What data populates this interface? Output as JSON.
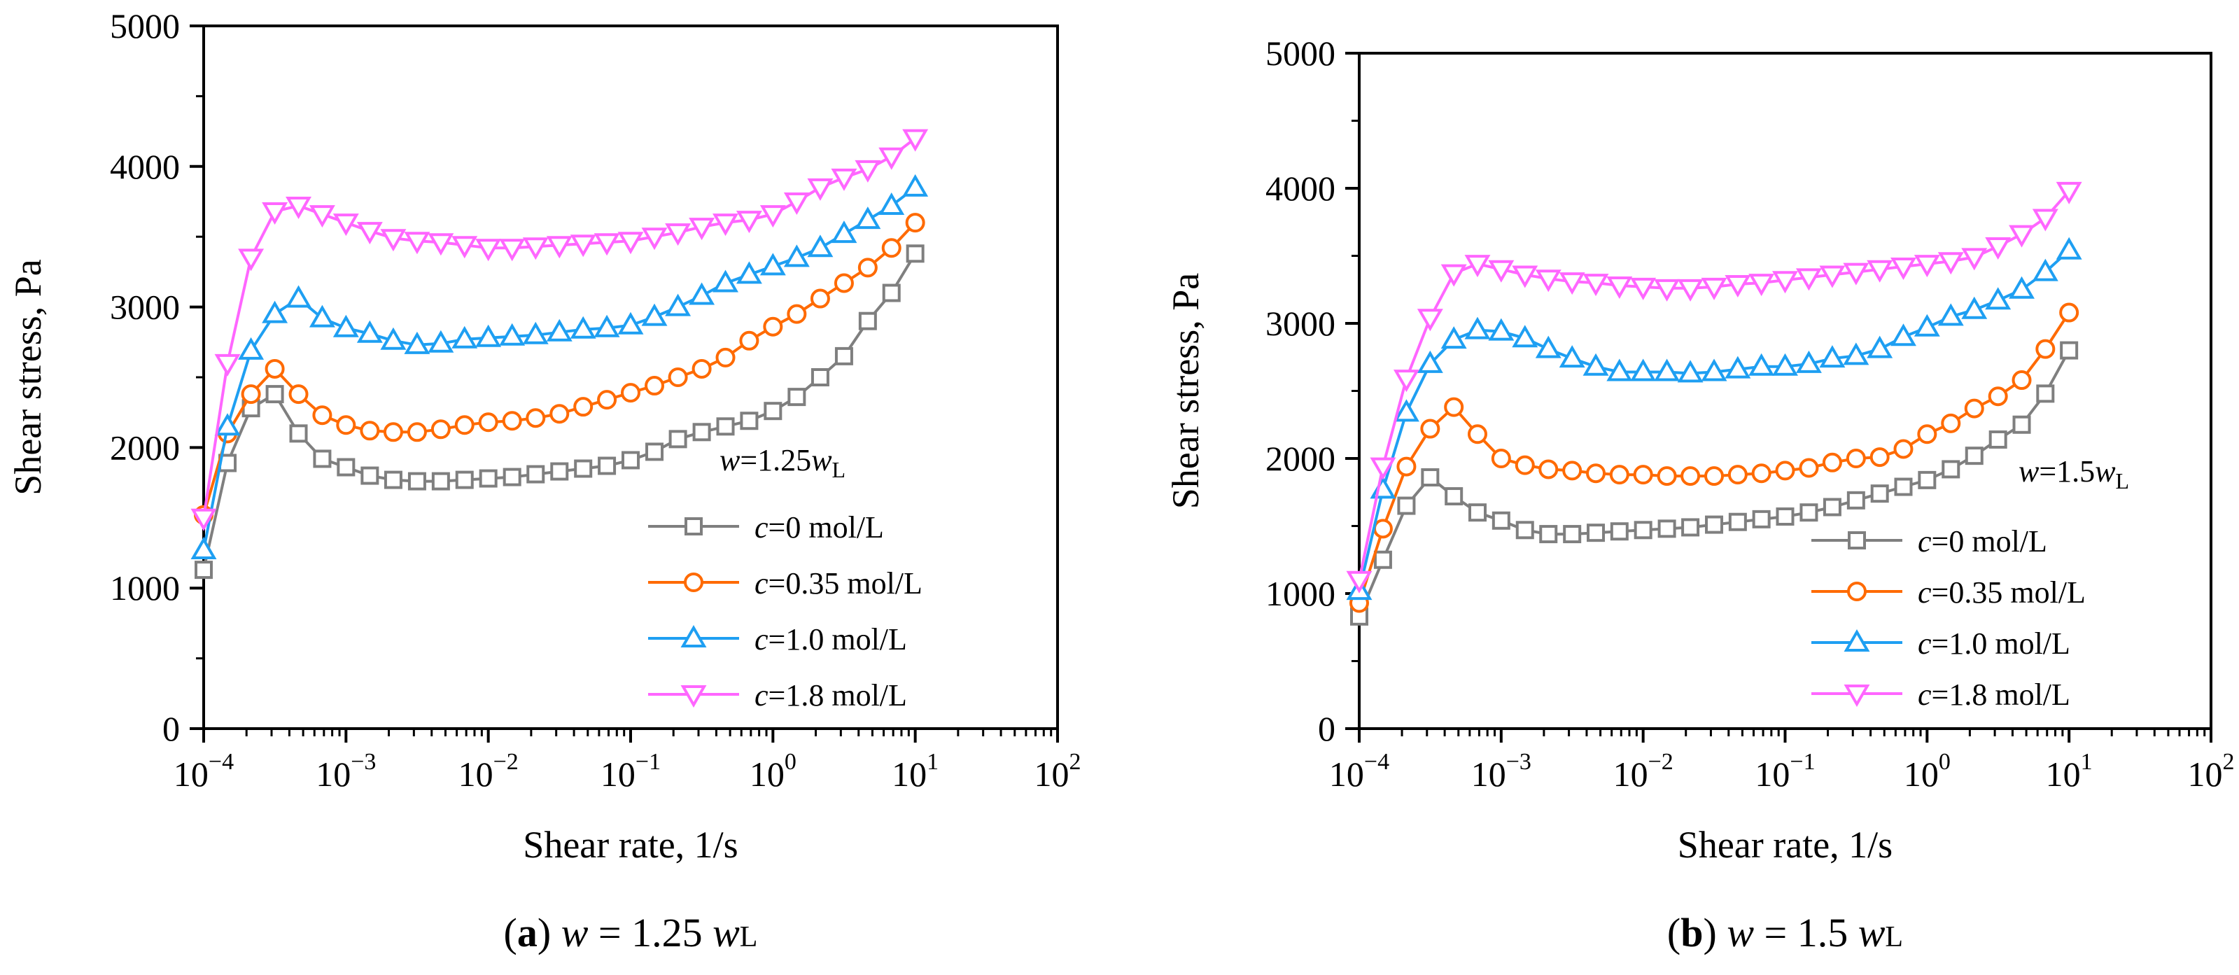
{
  "figure": {
    "series_styles": [
      {
        "marker": "square",
        "color": "#7f7f7f"
      },
      {
        "marker": "circle",
        "color": "#ff6a00"
      },
      {
        "marker": "triangle-up",
        "color": "#1e9ff2"
      },
      {
        "marker": "triangle-down",
        "color": "#ff66ff"
      }
    ]
  },
  "chart_data": [
    {
      "type": "line",
      "panel_label": "a",
      "caption": {
        "prefix": "(",
        "label": "a",
        "close": ")",
        "var": "w",
        "eq": " = 1.25 ",
        "wvar": "w",
        "sub": "L"
      },
      "title": "",
      "xlabel": "Shear rate, 1/s",
      "ylabel": "Shear stress, Pa",
      "xscale": "log",
      "xlim_exp": [
        -4,
        2
      ],
      "ylim": [
        0,
        5000
      ],
      "xticks": [
        {
          "base": "10",
          "exp": "−4"
        },
        {
          "base": "10",
          "exp": "−3"
        },
        {
          "base": "10",
          "exp": "−2"
        },
        {
          "base": "10",
          "exp": "−1"
        },
        {
          "base": "10",
          "exp": "0"
        },
        {
          "base": "10",
          "exp": "1"
        },
        {
          "base": "10",
          "exp": "2"
        }
      ],
      "yticks": [
        "0",
        "1000",
        "2000",
        "3000",
        "4000",
        "5000"
      ],
      "annotation": {
        "var": "w",
        "text": "=1.25",
        "var2": "w",
        "sub": "L"
      },
      "legend_position": "lower-right",
      "x": [
        0.0001,
        0.000147,
        0.000215,
        0.000316,
        0.000464,
        0.000681,
        0.001,
        0.00147,
        0.00215,
        0.00316,
        0.00464,
        0.00681,
        0.01,
        0.0147,
        0.0215,
        0.0316,
        0.0464,
        0.0681,
        0.1,
        0.147,
        0.215,
        0.316,
        0.464,
        0.681,
        1,
        1.47,
        2.15,
        3.16,
        4.64,
        6.81,
        10
      ],
      "series": [
        {
          "name": "c=0 mol/L",
          "legend_var": "c",
          "legend_text": "=0 mol/L",
          "values": [
            1130,
            1890,
            2280,
            2380,
            2100,
            1920,
            1860,
            1800,
            1770,
            1760,
            1760,
            1770,
            1780,
            1790,
            1810,
            1830,
            1850,
            1870,
            1910,
            1970,
            2060,
            2110,
            2150,
            2190,
            2260,
            2360,
            2500,
            2650,
            2900,
            3100,
            3380
          ]
        },
        {
          "name": "c=0.35 mol/L",
          "legend_var": "c",
          "legend_text": "=0.35 mol/L",
          "values": [
            1520,
            2100,
            2380,
            2560,
            2380,
            2230,
            2160,
            2120,
            2110,
            2110,
            2130,
            2160,
            2180,
            2190,
            2210,
            2240,
            2290,
            2340,
            2390,
            2440,
            2500,
            2560,
            2640,
            2760,
            2860,
            2950,
            3060,
            3170,
            3280,
            3420,
            3600
          ]
        },
        {
          "name": "c=1.0 mol/L",
          "legend_var": "c",
          "legend_text": "=1.0 mol/L",
          "values": [
            1270,
            2150,
            2690,
            2950,
            3060,
            2920,
            2850,
            2810,
            2760,
            2730,
            2740,
            2770,
            2780,
            2790,
            2800,
            2820,
            2840,
            2850,
            2870,
            2930,
            3000,
            3080,
            3170,
            3230,
            3290,
            3350,
            3420,
            3520,
            3620,
            3720,
            3850
          ]
        },
        {
          "name": "c=1.8 mol/L",
          "legend_var": "c",
          "legend_text": "=1.8 mol/L",
          "values": [
            1500,
            2600,
            3350,
            3680,
            3720,
            3660,
            3600,
            3540,
            3490,
            3470,
            3460,
            3440,
            3420,
            3420,
            3430,
            3440,
            3450,
            3460,
            3470,
            3500,
            3530,
            3570,
            3600,
            3620,
            3660,
            3750,
            3850,
            3920,
            3980,
            4070,
            4200
          ]
        }
      ]
    },
    {
      "type": "line",
      "panel_label": "b",
      "caption": {
        "prefix": "(",
        "label": "b",
        "close": ")",
        "var": "w",
        "eq": " = 1.5 ",
        "wvar": "w",
        "sub": "L"
      },
      "title": "",
      "xlabel": "Shear rate, 1/s",
      "ylabel": "Shear stress, Pa",
      "xscale": "log",
      "xlim_exp": [
        -4,
        2
      ],
      "ylim": [
        0,
        5000
      ],
      "xticks": [
        {
          "base": "10",
          "exp": "−4"
        },
        {
          "base": "10",
          "exp": "−3"
        },
        {
          "base": "10",
          "exp": "−2"
        },
        {
          "base": "10",
          "exp": "−1"
        },
        {
          "base": "10",
          "exp": "0"
        },
        {
          "base": "10",
          "exp": "1"
        },
        {
          "base": "10",
          "exp": "2"
        }
      ],
      "yticks": [
        "0",
        "1000",
        "2000",
        "3000",
        "4000",
        "5000"
      ],
      "annotation": {
        "var": "w",
        "text": "=1.5",
        "var2": "w",
        "sub": "L"
      },
      "legend_position": "lower-right",
      "x": [
        0.0001,
        0.000147,
        0.000215,
        0.000316,
        0.000464,
        0.000681,
        0.001,
        0.00147,
        0.00215,
        0.00316,
        0.00464,
        0.00681,
        0.01,
        0.0147,
        0.0215,
        0.0316,
        0.0464,
        0.0681,
        0.1,
        0.147,
        0.215,
        0.316,
        0.464,
        0.681,
        1,
        1.47,
        2.15,
        3.16,
        4.64,
        6.81,
        10
      ],
      "series": [
        {
          "name": "c=0 mol/L",
          "legend_var": "c",
          "legend_text": "=0 mol/L",
          "values": [
            830,
            1250,
            1650,
            1860,
            1720,
            1600,
            1540,
            1470,
            1440,
            1440,
            1450,
            1460,
            1470,
            1480,
            1490,
            1510,
            1530,
            1550,
            1570,
            1600,
            1640,
            1690,
            1740,
            1790,
            1840,
            1920,
            2020,
            2140,
            2250,
            2480,
            2800
          ]
        },
        {
          "name": "c=0.35 mol/L",
          "legend_var": "c",
          "legend_text": "=0.35 mol/L",
          "values": [
            930,
            1480,
            1940,
            2220,
            2380,
            2180,
            2000,
            1950,
            1920,
            1910,
            1890,
            1880,
            1880,
            1870,
            1870,
            1870,
            1880,
            1890,
            1910,
            1930,
            1970,
            2000,
            2010,
            2070,
            2180,
            2260,
            2370,
            2460,
            2580,
            2810,
            3080
          ]
        },
        {
          "name": "c=1.0 mol/L",
          "legend_var": "c",
          "legend_text": "=1.0 mol/L",
          "values": [
            1020,
            1770,
            2340,
            2700,
            2880,
            2950,
            2940,
            2890,
            2810,
            2740,
            2680,
            2640,
            2640,
            2640,
            2630,
            2640,
            2660,
            2680,
            2680,
            2700,
            2740,
            2760,
            2810,
            2900,
            2970,
            3050,
            3100,
            3170,
            3250,
            3380,
            3540
          ]
        },
        {
          "name": "c=1.8 mol/L",
          "legend_var": "c",
          "legend_text": "=1.8 mol/L",
          "values": [
            1100,
            1940,
            2590,
            3040,
            3370,
            3440,
            3400,
            3360,
            3330,
            3310,
            3300,
            3280,
            3270,
            3260,
            3260,
            3270,
            3290,
            3300,
            3320,
            3340,
            3360,
            3380,
            3400,
            3420,
            3440,
            3460,
            3490,
            3570,
            3660,
            3780,
            3980
          ]
        }
      ]
    }
  ]
}
